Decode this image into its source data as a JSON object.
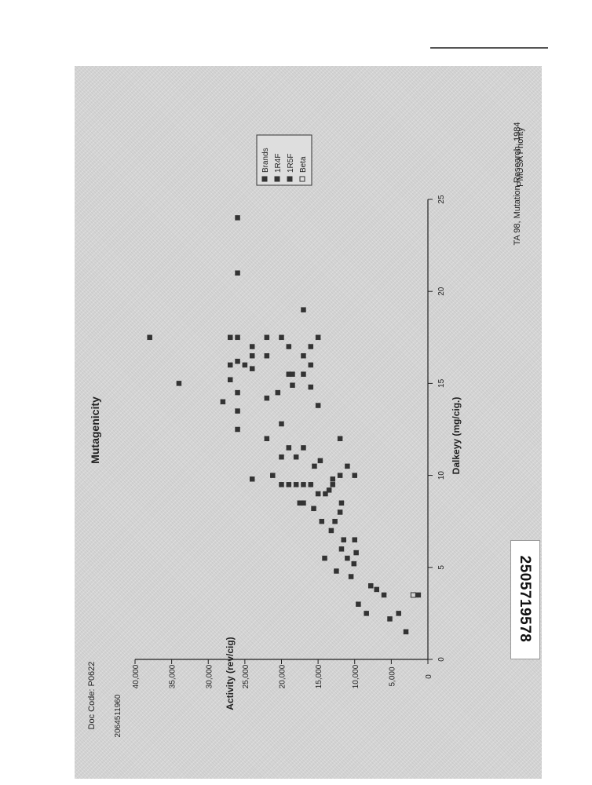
{
  "header": {
    "stamp": "PMUSA Priority"
  },
  "footer": {
    "source_note": "TA 98, Mutation Research, 1984",
    "doc_code": "Doc Code: P0622",
    "bates_side": "2064511960"
  },
  "sticker": {
    "number": "2505719578"
  },
  "colors": {
    "panel": "#d4d4d4",
    "marker": "#333333",
    "axis": "#222222"
  },
  "chart_data": {
    "type": "scatter",
    "title": "Mutagenicity",
    "xlabel": "Dalkeyy (mg/cig.)",
    "ylabel": "Activity (rev/cig)",
    "xlim": [
      0,
      25
    ],
    "ylim": [
      0,
      40000
    ],
    "xticks": [
      0,
      5,
      10,
      15,
      20,
      25
    ],
    "xtick_labels": [
      "0",
      "5",
      "10",
      "15",
      "20",
      "25"
    ],
    "yticks": [
      0,
      5000,
      10000,
      15000,
      20000,
      25000,
      30000,
      35000,
      40000
    ],
    "ytick_labels": [
      "0",
      "5,000",
      "10,000",
      "15,000",
      "20,000",
      "25,000",
      "30,000",
      "35,000",
      "40,000"
    ],
    "legend": {
      "placement": "top-right",
      "entries": [
        "Brands",
        "1R4F",
        "1R5F",
        "Beta"
      ]
    },
    "series": [
      {
        "name": "Brands",
        "points": [
          [
            1.5,
            3000
          ],
          [
            2.5,
            4000
          ],
          [
            2.2,
            5200
          ],
          [
            3.5,
            6000
          ],
          [
            3.8,
            7000
          ],
          [
            4.0,
            7800
          ],
          [
            2.5,
            8400
          ],
          [
            3.0,
            9500
          ],
          [
            4.5,
            10500
          ],
          [
            5.2,
            10100
          ],
          [
            5.5,
            11000
          ],
          [
            5.8,
            9800
          ],
          [
            6.0,
            11800
          ],
          [
            6.5,
            10000
          ],
          [
            6.5,
            11500
          ],
          [
            4.8,
            12500
          ],
          [
            5.5,
            14100
          ],
          [
            7.0,
            13200
          ],
          [
            7.5,
            12700
          ],
          [
            7.5,
            14500
          ],
          [
            8.2,
            15600
          ],
          [
            8.0,
            12000
          ],
          [
            8.5,
            11800
          ],
          [
            8.5,
            17000
          ],
          [
            8.5,
            17500
          ],
          [
            9.0,
            14000
          ],
          [
            9.2,
            13500
          ],
          [
            9.5,
            13000
          ],
          [
            9.8,
            13000
          ],
          [
            9.0,
            15000
          ],
          [
            9.5,
            16000
          ],
          [
            9.5,
            17000
          ],
          [
            9.5,
            18000
          ],
          [
            9.5,
            19000
          ],
          [
            9.5,
            20000
          ],
          [
            9.8,
            24000
          ],
          [
            10.0,
            21200
          ],
          [
            10.0,
            10000
          ],
          [
            10.0,
            12000
          ],
          [
            10.5,
            11000
          ],
          [
            10.5,
            15500
          ],
          [
            10.8,
            14700
          ],
          [
            11.0,
            20000
          ],
          [
            11.0,
            18000
          ],
          [
            11.5,
            17000
          ],
          [
            11.5,
            19000
          ],
          [
            12.0,
            12000
          ],
          [
            12.0,
            22000
          ],
          [
            12.5,
            26000
          ],
          [
            12.8,
            20000
          ],
          [
            13.5,
            26000
          ],
          [
            13.8,
            15000
          ],
          [
            14.0,
            28000
          ],
          [
            14.2,
            22000
          ],
          [
            14.5,
            20500
          ],
          [
            14.5,
            26000
          ],
          [
            14.8,
            16000
          ],
          [
            14.9,
            18500
          ],
          [
            15.0,
            34000
          ],
          [
            15.2,
            27000
          ],
          [
            15.5,
            17000
          ],
          [
            15.5,
            19000
          ],
          [
            15.5,
            18500
          ],
          [
            15.8,
            24000
          ],
          [
            16.0,
            16000
          ],
          [
            16.0,
            25000
          ],
          [
            16.0,
            27000
          ],
          [
            16.2,
            26000
          ],
          [
            16.5,
            17000
          ],
          [
            16.5,
            22000
          ],
          [
            16.5,
            24000
          ],
          [
            17.0,
            16000
          ],
          [
            17.0,
            19000
          ],
          [
            17.0,
            24000
          ],
          [
            17.5,
            27000
          ],
          [
            17.5,
            20000
          ],
          [
            17.5,
            22000
          ],
          [
            17.5,
            26000
          ],
          [
            17.5,
            15000
          ],
          [
            17.5,
            38000
          ],
          [
            19.0,
            17000
          ],
          [
            21.0,
            26000
          ],
          [
            24.0,
            26000
          ]
        ]
      },
      {
        "name": "1R4F",
        "points": [
          [
            3.5,
            1300
          ]
        ]
      },
      {
        "name": "1R5F",
        "points": [
          [
            3.5,
            2000
          ]
        ]
      },
      {
        "name": "Beta",
        "points": []
      }
    ]
  }
}
